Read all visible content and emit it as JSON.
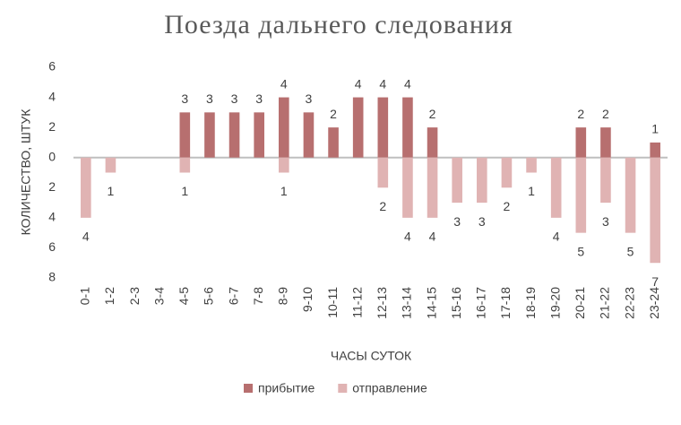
{
  "chart_data": {
    "type": "bar",
    "title": "Поезда дальнего следования",
    "x_label": "ЧАСЫ СУТОК",
    "y_label": "КОЛИЧЕСТВО, ШТУК",
    "categories": [
      "0-1",
      "1-2",
      "2-3",
      "3-4",
      "4-5",
      "5-6",
      "6-7",
      "7-8",
      "8-9",
      "9-10",
      "10-11",
      "11-12",
      "12-13",
      "13-14",
      "14-15",
      "15-16",
      "16-17",
      "17-18",
      "18-19",
      "19-20",
      "20-21",
      "21-22",
      "22-23",
      "23-24"
    ],
    "series": [
      {
        "name": "прибытие",
        "color": "#b76f6f",
        "values": [
          null,
          null,
          null,
          null,
          3,
          3,
          3,
          3,
          4,
          3,
          2,
          4,
          4,
          4,
          2,
          null,
          null,
          null,
          null,
          null,
          2,
          2,
          null,
          1
        ]
      },
      {
        "name": "отправление",
        "color": "#e0b3b3",
        "values": [
          -4,
          -1,
          null,
          null,
          -1,
          null,
          null,
          null,
          -1,
          null,
          null,
          null,
          -2,
          -4,
          -4,
          -3,
          -3,
          -2,
          -1,
          -4,
          -5,
          -3,
          -5,
          -7
        ],
        "value_labels": [
          "4",
          "1",
          null,
          null,
          "1",
          null,
          null,
          null,
          "1",
          null,
          null,
          null,
          "2",
          "4",
          "4",
          "3",
          "3",
          "2",
          "1",
          "4",
          "5",
          "3",
          "5",
          "7"
        ]
      }
    ],
    "ylim": [
      -8,
      6
    ],
    "yticks": [
      6,
      4,
      2,
      0,
      {
        "value": -2,
        "label": "2"
      },
      {
        "value": -4,
        "label": "4"
      },
      {
        "value": -6,
        "label": "6"
      },
      {
        "value": -8,
        "label": "8"
      }
    ],
    "grid": false,
    "legend": "bottom"
  }
}
